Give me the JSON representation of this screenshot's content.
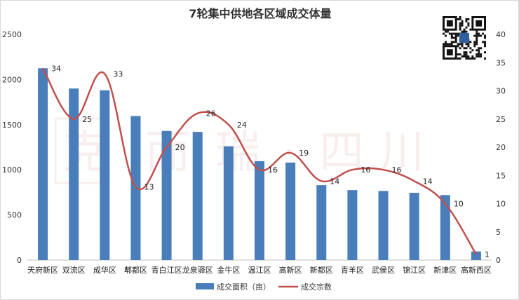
{
  "chart_data": {
    "type": "bar",
    "title": "7轮集中供地各区域成交体量",
    "categories": [
      "天府新区",
      "双流区",
      "成华区",
      "郫都区",
      "青白江区",
      "龙泉驿区",
      "金牛区",
      "温江区",
      "高新区",
      "新都区",
      "青羊区",
      "武侯区",
      "锦江区",
      "新津区",
      "高新西区"
    ],
    "series": [
      {
        "name": "成交面积（亩）",
        "type": "bar",
        "axis": "left",
        "color": "#4a7ebb",
        "values": [
          2125,
          1900,
          1880,
          1595,
          1430,
          1420,
          1260,
          1095,
          1080,
          830,
          775,
          765,
          745,
          720,
          95
        ]
      },
      {
        "name": "成交宗数",
        "type": "line",
        "axis": "right",
        "color": "#c0504d",
        "values": [
          34,
          25,
          33,
          13,
          20,
          26,
          24,
          16,
          19,
          14,
          16,
          16,
          14,
          10,
          1
        ],
        "labels": [
          "34",
          "25",
          "33",
          "13",
          "20",
          "26",
          "24",
          "16",
          "19",
          "14",
          "16",
          "16",
          "14",
          "10",
          "1"
        ]
      }
    ],
    "left_axis": {
      "min": 0,
      "max": 2500,
      "step": 500,
      "ticks": [
        "0",
        "500",
        "1000",
        "1500",
        "2000",
        "2500"
      ]
    },
    "right_axis": {
      "min": 0,
      "max": 40,
      "step": 5,
      "ticks": [
        "0",
        "5",
        "10",
        "15",
        "20",
        "25",
        "30",
        "35",
        "40"
      ]
    },
    "grid": false,
    "legend_position": "bottom"
  },
  "watermark": {
    "text": [
      "克",
      "而",
      "瑞",
      "·",
      "四",
      "川"
    ],
    "logo_text": "克"
  },
  "qr_badge_text": "克而瑞"
}
